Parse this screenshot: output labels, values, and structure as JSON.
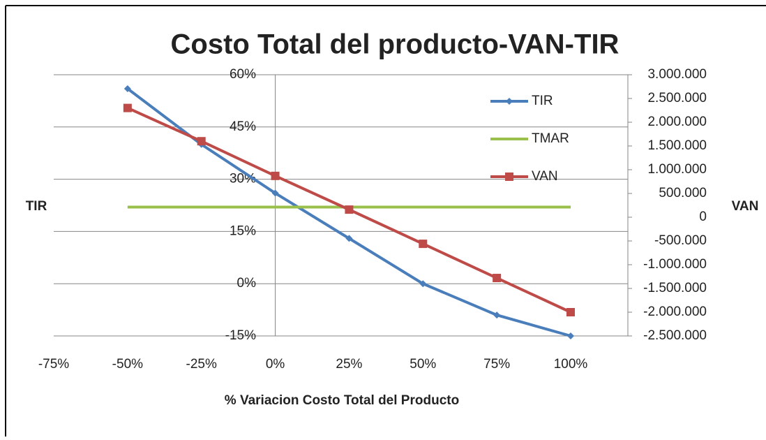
{
  "chart_data": {
    "type": "line",
    "title": "Costo Total del producto-VAN-TIR",
    "x_label": "% Variacion Costo Total del Producto",
    "y_label": "TIR",
    "y2_label": "VAN",
    "x": [
      -50,
      -25,
      0,
      25,
      50,
      75,
      100
    ],
    "xlim": [
      -75,
      100
    ],
    "xticks": [
      {
        "value": -75,
        "label": "-75%"
      },
      {
        "value": -50,
        "label": "-50%"
      },
      {
        "value": -25,
        "label": "-25%"
      },
      {
        "value": 0,
        "label": "0%"
      },
      {
        "value": 25,
        "label": "25%"
      },
      {
        "value": 50,
        "label": "50%"
      },
      {
        "value": 75,
        "label": "75%"
      },
      {
        "value": 100,
        "label": "100%"
      }
    ],
    "ylim": [
      -15,
      60
    ],
    "yticks": [
      {
        "value": -15,
        "label": "-15%"
      },
      {
        "value": 0,
        "label": "0%"
      },
      {
        "value": 15,
        "label": "15%"
      },
      {
        "value": 30,
        "label": "30%"
      },
      {
        "value": 45,
        "label": "45%"
      },
      {
        "value": 60,
        "label": "60%"
      }
    ],
    "y2lim": [
      -2500000,
      3000000
    ],
    "y2ticks": [
      {
        "value": -2500000,
        "label": "-2.500.000"
      },
      {
        "value": -2000000,
        "label": "-2.000.000"
      },
      {
        "value": -1500000,
        "label": "-1.500.000"
      },
      {
        "value": -1000000,
        "label": "-1.000.000"
      },
      {
        "value": -500000,
        "label": "-500.000"
      },
      0,
      {
        "value": 500000,
        "label": "500.000"
      },
      {
        "value": 1000000,
        "label": "1.000.000"
      },
      {
        "value": 1500000,
        "label": "1.500.000"
      },
      {
        "value": 2000000,
        "label": "2.000.000"
      },
      {
        "value": 2500000,
        "label": "2.500.000"
      },
      {
        "value": 3000000,
        "label": "3.000.000"
      }
    ],
    "grid": true,
    "legend": "upper right",
    "series": [
      {
        "name": "TIR",
        "color": "#4a7ebb",
        "marker": "diamond",
        "values": [
          56,
          40,
          26,
          13,
          0,
          -9,
          -15
        ]
      },
      {
        "name": "TMAR",
        "color": "#98c04a",
        "marker": "none",
        "values": [
          22,
          22,
          22,
          22,
          22,
          22,
          22
        ]
      },
      {
        "name": "VAN",
        "color": "#be4b48",
        "marker": "square",
        "axis": "y2",
        "values": [
          2300000,
          1600000,
          870000,
          160000,
          -560000,
          -1280000,
          -2000000
        ]
      }
    ]
  }
}
